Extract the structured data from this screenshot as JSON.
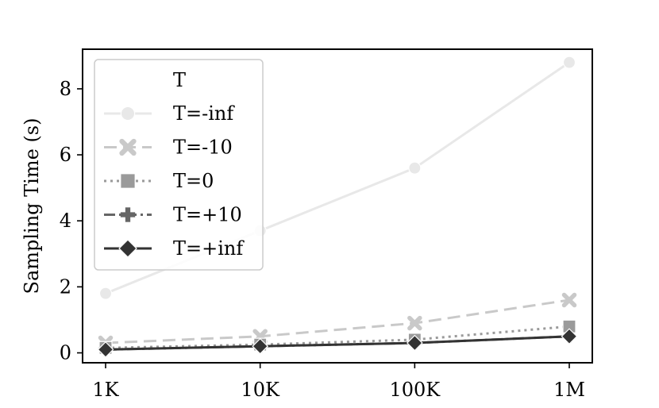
{
  "chart_data": {
    "type": "line",
    "title": "",
    "xlabel": "",
    "ylabel": "Sampling Time (s)",
    "categories": [
      "1K",
      "10K",
      "100K",
      "1M"
    ],
    "ylim": [
      -0.3,
      9.2
    ],
    "yticks": [
      0,
      2,
      4,
      6,
      8
    ],
    "grid": false,
    "legend": {
      "title": "T",
      "position": "top-left"
    },
    "series": [
      {
        "name": "T=-inf",
        "values": [
          1.8,
          3.7,
          5.6,
          8.8
        ],
        "color": "#e8e8e8",
        "dash": "solid",
        "marker": "circle"
      },
      {
        "name": "T=-10",
        "values": [
          0.3,
          0.5,
          0.9,
          1.6
        ],
        "color": "#c9c9c9",
        "dash": "dashed",
        "marker": "x"
      },
      {
        "name": "T=0",
        "values": [
          0.15,
          0.25,
          0.4,
          0.8
        ],
        "color": "#9a9a9a",
        "dash": "dotted",
        "marker": "square"
      },
      {
        "name": "T=+10",
        "values": [
          0.1,
          0.2,
          0.3,
          0.5
        ],
        "color": "#666666",
        "dash": "dashdot",
        "marker": "plus"
      },
      {
        "name": "T=+inf",
        "values": [
          0.1,
          0.2,
          0.3,
          0.5
        ],
        "color": "#333333",
        "dash": "solid",
        "marker": "diamond"
      }
    ]
  }
}
